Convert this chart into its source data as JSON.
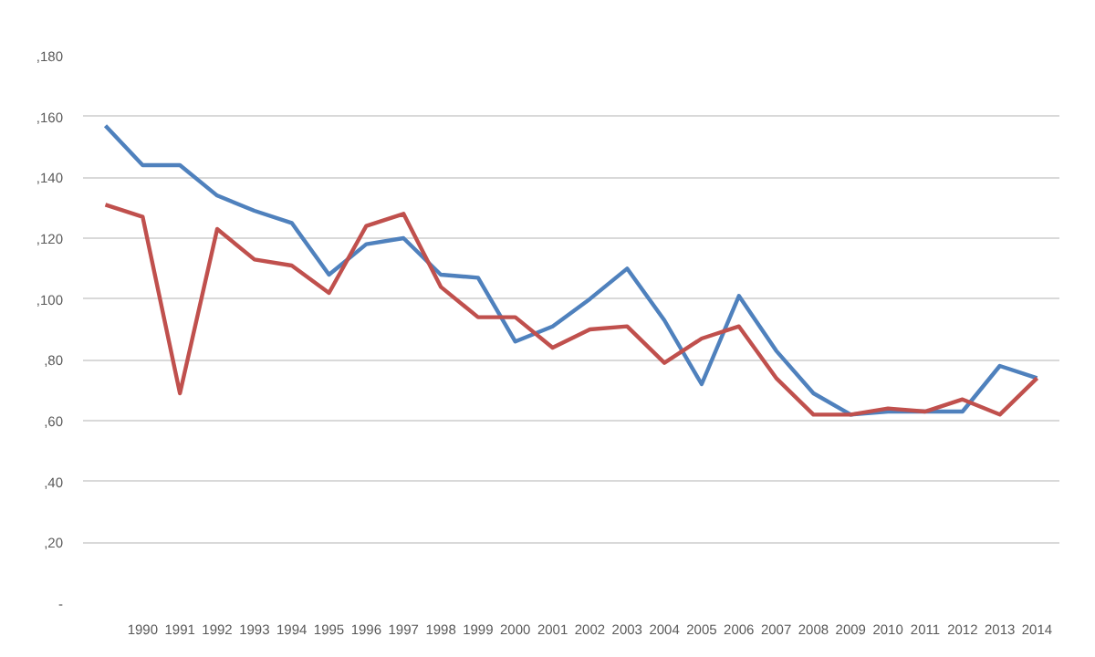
{
  "chart_data": {
    "type": "line",
    "categories": [
      null,
      "1990",
      "1991",
      "1992",
      "1993",
      "1994",
      "1995",
      "1996",
      "1997",
      "1998",
      "1999",
      "2000",
      "2001",
      "2002",
      "2003",
      "2004",
      "2005",
      "2006",
      "2007",
      "2008",
      "2009",
      "2010",
      "2011",
      "2012",
      "2013",
      "2014"
    ],
    "series": [
      {
        "color": "#4f81bd",
        "values": [
          157,
          144,
          144,
          134,
          129,
          125,
          108,
          118,
          120,
          108,
          107,
          86,
          91,
          100,
          110,
          93,
          72,
          101,
          83,
          69,
          62,
          63,
          63,
          63,
          78,
          74
        ]
      },
      {
        "color": "#c0504d",
        "values": [
          131,
          127,
          69,
          123,
          113,
          111,
          102,
          124,
          128,
          104,
          94,
          94,
          84,
          90,
          91,
          79,
          87,
          91,
          74,
          62,
          62,
          64,
          63,
          67,
          62,
          74
        ]
      }
    ],
    "ylim": [
      0,
      180
    ],
    "yticks": [
      {
        "value": 0,
        "label": "-"
      },
      {
        "value": 20,
        "label": ",20"
      },
      {
        "value": 40,
        "label": ",40"
      },
      {
        "value": 60,
        "label": ",60"
      },
      {
        "value": 80,
        "label": ",80"
      },
      {
        "value": 100,
        "label": ",100"
      },
      {
        "value": 120,
        "label": ",120"
      },
      {
        "value": 140,
        "label": ",140"
      },
      {
        "value": 160,
        "label": ",160"
      },
      {
        "value": 180,
        "label": ",180"
      }
    ],
    "grid": "y",
    "marker": "none",
    "line_style": "solid"
  }
}
